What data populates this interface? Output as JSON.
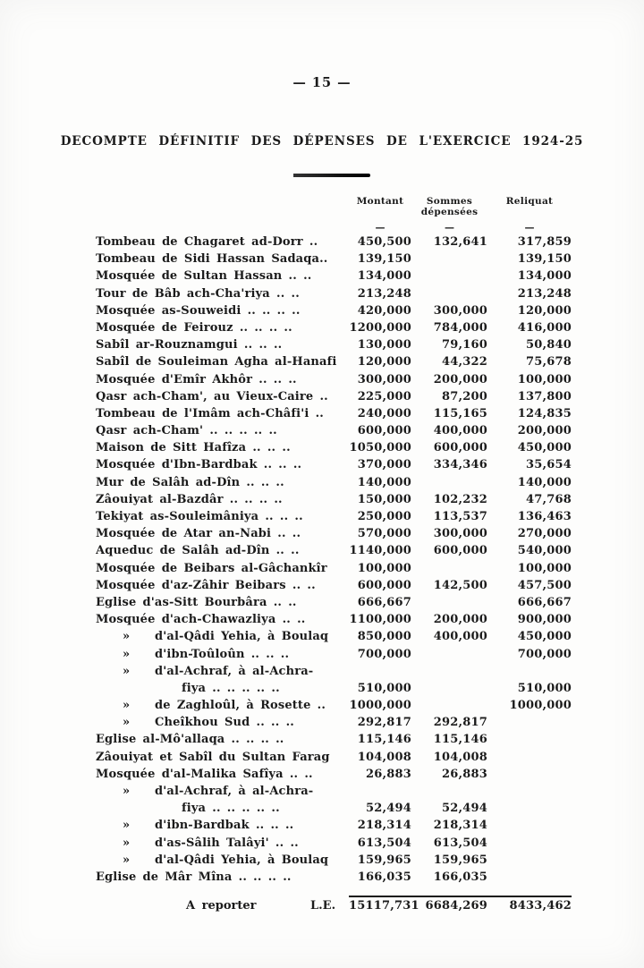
{
  "paper_color": "#fdfdfc",
  "ink_color": "#1b1b1b",
  "page": {
    "number": "— 15 —"
  },
  "title": "DECOMPTE DÉFINITIF DES DÉPENSES DE L'EXERCICE 1924-25",
  "table": {
    "headers": {
      "montant": "Montant",
      "depensees_line1": "Sommes",
      "depensees_line2": "dépensées",
      "reliquat": "Reliquat",
      "dash": "—"
    },
    "rows": [
      {
        "prefix": "",
        "indent": "",
        "label": "Tombeau de Chagaret ad-Dorr ..",
        "m": "450,500",
        "d": "132,641",
        "r": "317,859"
      },
      {
        "prefix": "",
        "indent": "",
        "label": "Tombeau de Sidi Hassan Sadaqa..",
        "m": "139,150",
        "d": "",
        "r": "139,150"
      },
      {
        "prefix": "",
        "indent": "",
        "label": "Mosquée de Sultan Hassan .. ..",
        "m": "134,000",
        "d": "",
        "r": "134,000"
      },
      {
        "prefix": "",
        "indent": "",
        "label": "Tour de Bâb ach-Cha'riya  ..  ..",
        "m": "213,248",
        "d": "",
        "r": "213,248"
      },
      {
        "prefix": "",
        "indent": "",
        "label": "Mosquée as-Souweidi .. .. .. ..",
        "m": "420,000",
        "d": "300,000",
        "r": "120,000"
      },
      {
        "prefix": "",
        "indent": "",
        "label": "Mosquée de Feirouz .. .. .. ..",
        "m": "1200,000",
        "d": "784,000",
        "r": "416,000"
      },
      {
        "prefix": "",
        "indent": "",
        "label": "Sabîl ar-Rouznamgui  ..  ..  ..",
        "m": "130,000",
        "d": "79,160",
        "r": "50,840"
      },
      {
        "prefix": "",
        "indent": "",
        "label": "Sabîl de Souleiman Agha al-Hanafi",
        "m": "120,000",
        "d": "44,322",
        "r": "75,678"
      },
      {
        "prefix": "",
        "indent": "",
        "label": "Mosquée d'Emîr Akhôr ..  ..  ..",
        "m": "300,000",
        "d": "200,000",
        "r": "100,000"
      },
      {
        "prefix": "",
        "indent": "",
        "label": "Qasr ach-Cham', au Vieux-Caire ..",
        "m": "225,000",
        "d": "87,200",
        "r": "137,800"
      },
      {
        "prefix": "",
        "indent": "",
        "label": "Tombeau de l'Imâm ach-Châfi'i ..",
        "m": "240,000",
        "d": "115,165",
        "r": "124,835"
      },
      {
        "prefix": "",
        "indent": "",
        "label": "Qasr ach-Cham' .. .. .. .. ..",
        "m": "600,000",
        "d": "400,000",
        "r": "200,000"
      },
      {
        "prefix": "",
        "indent": "",
        "label": "Maison de Sitt Hafîza .. .. ..",
        "m": "1050,000",
        "d": "600,000",
        "r": "450,000"
      },
      {
        "prefix": "",
        "indent": "",
        "label": "Mosquée d'Ibn-Bardbak .. .. ..",
        "m": "370,000",
        "d": "334,346",
        "r": "35,654"
      },
      {
        "prefix": "",
        "indent": "",
        "label": "Mur de Salâh ad-Dîn  ..  ..  ..",
        "m": "140,000",
        "d": "",
        "r": "140,000"
      },
      {
        "prefix": "",
        "indent": "",
        "label": "Zâouiyat al-Bazdâr .. .. .. ..",
        "m": "150,000",
        "d": "102,232",
        "r": "47,768"
      },
      {
        "prefix": "",
        "indent": "",
        "label": "Tekiyat as-Souleimâniya .. .. ..",
        "m": "250,000",
        "d": "113,537",
        "r": "136,463"
      },
      {
        "prefix": "",
        "indent": "",
        "label": "Mosquée de Atar an-Nabi  ..  ..",
        "m": "570,000",
        "d": "300,000",
        "r": "270,000"
      },
      {
        "prefix": "",
        "indent": "",
        "label": "Aqueduc de Salâh ad-Dîn  ..  ..",
        "m": "1140,000",
        "d": "600,000",
        "r": "540,000"
      },
      {
        "prefix": "",
        "indent": "",
        "label": "Mosquée de Beibars al-Gâchankîr",
        "m": "100,000",
        "d": "",
        "r": "100,000"
      },
      {
        "prefix": "",
        "indent": "",
        "label": "Mosquée d'az-Zâhir Beibars .. ..",
        "m": "600,000",
        "d": "142,500",
        "r": "457,500"
      },
      {
        "prefix": "",
        "indent": "",
        "label": "Eglise d'as-Sitt Bourbâra  ..  ..",
        "m": "666,667",
        "d": "",
        "r": "666,667"
      },
      {
        "prefix": "",
        "indent": "",
        "label": "Mosquée d'ach-Chawazliya  ..  ..",
        "m": "1100,000",
        "d": "200,000",
        "r": "900,000"
      },
      {
        "prefix": "»",
        "indent": "ditto",
        "label": "d'al-Qâdi Yehia, à Boulaq",
        "m": "850,000",
        "d": "400,000",
        "r": "450,000"
      },
      {
        "prefix": "»",
        "indent": "ditto",
        "label": "d'ibn-Toûloûn  ..  ..  ..",
        "m": "700,000",
        "d": "",
        "r": "700,000"
      },
      {
        "prefix": "»",
        "indent": "ditto",
        "label": "d'al-Achraf,  à  al-Achra-",
        "m": "",
        "d": "",
        "r": ""
      },
      {
        "prefix": "",
        "indent": "cont",
        "label": "fiya  ..  ..  ..  ..  ..",
        "m": "510,000",
        "d": "",
        "r": "510,000"
      },
      {
        "prefix": "»",
        "indent": "ditto",
        "label": "de Zaghloûl, à Rosette ..",
        "m": "1000,000",
        "d": "",
        "r": "1000,000"
      },
      {
        "prefix": "»",
        "indent": "ditto",
        "label": "Cheîkhou Sud ..  ..  ..",
        "m": "292,817",
        "d": "292,817",
        "r": ""
      },
      {
        "prefix": "",
        "indent": "",
        "label": "Eglise al-Mô'allaqa .. .. .. ..",
        "m": "115,146",
        "d": "115,146",
        "r": ""
      },
      {
        "prefix": "",
        "indent": "",
        "label": "Zâouiyat et Sabîl du Sultan Farag",
        "m": "104,008",
        "d": "104,008",
        "r": ""
      },
      {
        "prefix": "",
        "indent": "",
        "label": "Mosquée d'al-Malika Safîya .. ..",
        "m": "26,883",
        "d": "26,883",
        "r": ""
      },
      {
        "prefix": "»",
        "indent": "ditto",
        "label": "d'al-Achraf,  à  al-Achra-",
        "m": "",
        "d": "",
        "r": ""
      },
      {
        "prefix": "",
        "indent": "cont",
        "label": "fiya  ..  ..  ..  ..  ..",
        "m": "52,494",
        "d": "52,494",
        "r": ""
      },
      {
        "prefix": "»",
        "indent": "ditto",
        "label": "d'ibn-Bardbak ..  ..  ..",
        "m": "218,314",
        "d": "218,314",
        "r": ""
      },
      {
        "prefix": "»",
        "indent": "ditto",
        "label": "d'as-Sâlih Talâyi'  ..  ..",
        "m": "613,504",
        "d": "613,504",
        "r": ""
      },
      {
        "prefix": "»",
        "indent": "ditto",
        "label": "d'al-Qâdi Yehia, à Boulaq",
        "m": "159,965",
        "d": "159,965",
        "r": ""
      },
      {
        "prefix": "",
        "indent": "",
        "label": "Eglise de Mâr Mîna .. .. .. ..",
        "m": "166,035",
        "d": "166,035",
        "r": ""
      }
    ],
    "total": {
      "label": "A reporter",
      "currency": "L.E.",
      "m": "15117,731",
      "d": "6684,269",
      "r": "8433,462"
    }
  }
}
